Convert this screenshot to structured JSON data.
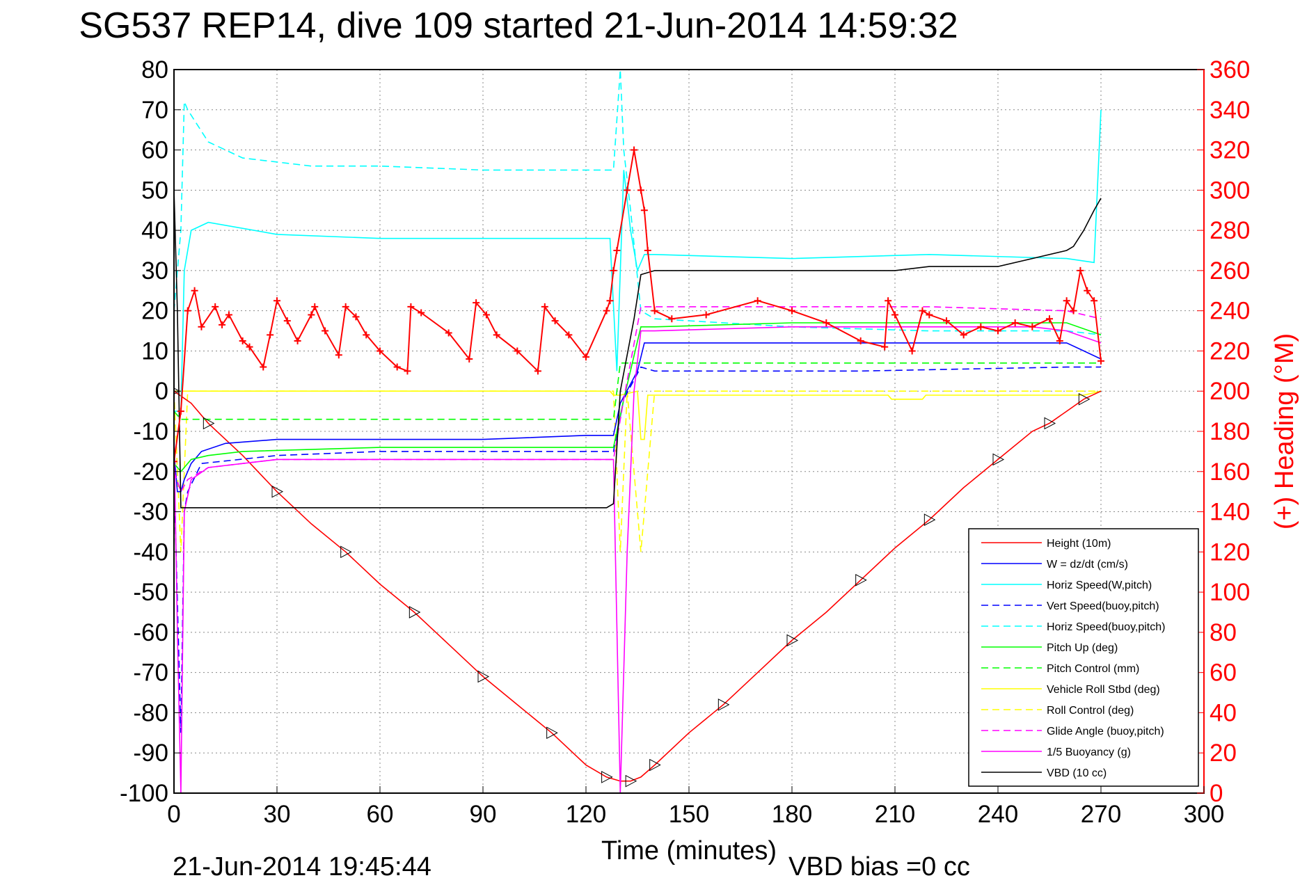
{
  "chart_data": {
    "type": "line",
    "title": "SG537 REP14, dive 109 started 21-Jun-2014 14:59:32",
    "xlabel": "Time (minutes)",
    "ylabel": "",
    "y2label": "(+) Heading (°M)",
    "footer_left": "21-Jun-2014 19:45:44",
    "footer_right": "VBD bias =0 cc",
    "xlim": [
      0,
      300
    ],
    "ylim": [
      -100,
      80
    ],
    "y2lim": [
      0,
      360
    ],
    "grid": true,
    "legend_position": "bottom-right",
    "xticks": [
      "0",
      "30",
      "60",
      "90",
      "120",
      "150",
      "180",
      "210",
      "240",
      "270",
      "300"
    ],
    "yticks": [
      "80",
      "70",
      "60",
      "50",
      "40",
      "30",
      "20",
      "10",
      "0",
      "-10",
      "-20",
      "-30",
      "-40",
      "-50",
      "-60",
      "-70",
      "-80",
      "-90",
      "-100"
    ],
    "y2ticks": [
      "360",
      "340",
      "320",
      "300",
      "280",
      "260",
      "240",
      "220",
      "200",
      "180",
      "160",
      "140",
      "120",
      "100",
      "80",
      "60",
      "40",
      "20",
      "0"
    ],
    "series": [
      {
        "name": "Height (10m)",
        "color": "#ff0000",
        "dash": "solid",
        "axis": "left",
        "x": [
          0,
          5,
          10,
          20,
          30,
          40,
          50,
          60,
          70,
          80,
          90,
          100,
          110,
          120,
          126,
          130,
          133,
          136,
          140,
          150,
          160,
          170,
          180,
          190,
          200,
          210,
          220,
          230,
          240,
          250,
          255,
          260,
          265,
          270
        ],
        "y": [
          0,
          -3,
          -8,
          -16,
          -25,
          -33,
          -40,
          -48,
          -55,
          -63,
          -71,
          -78,
          -85,
          -93,
          -96,
          -97,
          -97,
          -96,
          -93,
          -85,
          -78,
          -70,
          -62,
          -55,
          -47,
          -39,
          -32,
          -24,
          -17,
          -10,
          -8,
          -5,
          -2,
          0
        ]
      },
      {
        "name": "W = dz/dt (cm/s)",
        "color": "#0000ff",
        "dash": "solid",
        "axis": "left",
        "x": [
          0,
          1,
          2,
          3,
          5,
          8,
          15,
          30,
          60,
          90,
          120,
          128,
          130,
          135,
          137,
          140,
          180,
          220,
          260,
          265,
          270
        ],
        "y": [
          -15,
          -25,
          -25,
          -22,
          -18,
          -15,
          -13,
          -12,
          -12,
          -12,
          -11,
          -11,
          -3,
          5,
          12,
          12,
          12,
          12,
          12,
          10,
          8
        ]
      },
      {
        "name": "Horiz Speed(W,pitch)",
        "color": "#00ffff",
        "dash": "solid",
        "axis": "left",
        "x": [
          0,
          2,
          3,
          5,
          10,
          30,
          60,
          90,
          120,
          127,
          129,
          131,
          133,
          135,
          137,
          140,
          180,
          220,
          260,
          268,
          270
        ],
        "y": [
          -5,
          -5,
          30,
          40,
          42,
          39,
          38,
          38,
          38,
          38,
          5,
          55,
          40,
          30,
          34,
          34,
          33,
          34,
          33,
          32,
          70
        ]
      },
      {
        "name": "Vert Speed(buoy,pitch)",
        "color": "#0000ff",
        "dash": "dashed",
        "axis": "left",
        "x": [
          0,
          2,
          3,
          4,
          8,
          30,
          60,
          120,
          128,
          131,
          136,
          140,
          200,
          260,
          270
        ],
        "y": [
          -20,
          -85,
          -30,
          -25,
          -18,
          -16,
          -15,
          -15,
          -15,
          -2,
          6,
          5,
          5,
          6,
          6
        ]
      },
      {
        "name": "Horiz Speed(buoy,pitch)",
        "color": "#00ffff",
        "dash": "dashed",
        "axis": "left",
        "x": [
          0,
          2,
          3,
          4,
          10,
          20,
          40,
          60,
          90,
          120,
          128,
          130,
          131,
          133,
          136,
          140,
          180,
          220,
          260,
          270
        ],
        "y": [
          20,
          40,
          72,
          70,
          62,
          58,
          56,
          56,
          55,
          55,
          55,
          80,
          60,
          45,
          20,
          18,
          16,
          15,
          15,
          14
        ]
      },
      {
        "name": "Pitch Up (deg)",
        "color": "#00ff00",
        "dash": "solid",
        "axis": "left",
        "x": [
          0,
          2,
          5,
          10,
          20,
          60,
          90,
          120,
          128,
          131,
          136,
          140,
          180,
          220,
          260,
          270
        ],
        "y": [
          -18,
          -20,
          -17,
          -16,
          -15,
          -14,
          -14,
          -14,
          -14,
          -2,
          16,
          16,
          17,
          17,
          17,
          14
        ]
      },
      {
        "name": "Pitch Control (mm)",
        "color": "#00ff00",
        "dash": "dashed",
        "axis": "left",
        "x": [
          0,
          2,
          5,
          128,
          130,
          136,
          270
        ],
        "y": [
          -5,
          -7,
          -7,
          -7,
          7,
          7,
          7
        ]
      },
      {
        "name": "Vehicle Roll Stbd (deg)",
        "color": "#ffff00",
        "dash": "solid",
        "axis": "left",
        "x": [
          0,
          5,
          10,
          20,
          30,
          40,
          60,
          90,
          120,
          127,
          128,
          130,
          135,
          136,
          137,
          138,
          140,
          180,
          208,
          209,
          210,
          218,
          219,
          220,
          260,
          265,
          270
        ],
        "y": [
          0,
          0,
          0,
          0,
          0,
          0,
          0,
          0,
          0,
          0,
          -1,
          -1,
          0,
          -12,
          -12,
          -1,
          -1,
          -1,
          -1,
          -2,
          -2,
          -2,
          -1,
          -1,
          -1,
          -1,
          0
        ]
      },
      {
        "name": "Roll Control (deg)",
        "color": "#ffff00",
        "dash": "dashed",
        "axis": "left",
        "x": [
          0,
          2,
          4,
          6,
          128,
          130,
          132,
          136,
          140,
          250,
          255,
          258,
          262,
          270
        ],
        "y": [
          0,
          -40,
          0,
          0,
          0,
          -40,
          0,
          -40,
          0,
          0,
          0,
          0,
          0,
          0
        ]
      },
      {
        "name": "Glide Angle (buoy,pitch)",
        "color": "#ff00ff",
        "dash": "dashed",
        "axis": "left",
        "x": [
          0,
          2,
          4,
          10,
          30,
          60,
          90,
          120,
          128,
          131,
          136,
          140,
          180,
          220,
          260,
          270
        ],
        "y": [
          -20,
          -25,
          -22,
          -19,
          -17,
          -17,
          -17,
          -17,
          -17,
          -2,
          21,
          21,
          21,
          21,
          20,
          18
        ]
      },
      {
        "name": "1/5 Buoyancy (g)",
        "color": "#ff00ff",
        "dash": "solid",
        "axis": "left",
        "x": [
          0,
          1,
          2,
          3,
          5,
          10,
          30,
          60,
          90,
          120,
          128,
          130,
          132,
          134,
          136,
          140,
          180,
          220,
          250,
          260,
          270
        ],
        "y": [
          -10,
          -60,
          -100,
          -30,
          -22,
          -19,
          -17,
          -17,
          -17,
          -17,
          -17,
          -100,
          -40,
          0,
          15,
          15,
          16,
          16,
          16,
          15,
          12
        ]
      },
      {
        "name": "VBD (10 cc)",
        "color": "#000000",
        "dash": "solid",
        "axis": "left",
        "x": [
          0,
          1,
          2,
          3,
          10,
          30,
          60,
          90,
          120,
          126,
          128,
          130,
          134,
          136,
          140,
          180,
          210,
          220,
          240,
          250,
          260,
          262,
          265,
          268,
          270
        ],
        "y": [
          50,
          20,
          -29,
          -29,
          -29,
          -29,
          -29,
          -29,
          -29,
          -29,
          -28,
          0,
          18,
          29,
          30,
          30,
          30,
          31,
          31,
          33,
          35,
          36,
          40,
          45,
          48
        ]
      },
      {
        "name": "",
        "color": "#ff0000",
        "dash": "solid",
        "marker": "+",
        "axis": "right",
        "x": [
          0,
          2,
          4,
          6,
          8,
          12,
          14,
          16,
          20,
          22,
          26,
          28,
          30,
          33,
          36,
          40,
          41,
          44,
          48,
          50,
          53,
          56,
          60,
          65,
          68,
          69,
          72,
          80,
          86,
          88,
          91,
          94,
          100,
          106,
          108,
          111,
          115,
          120,
          126,
          127,
          128,
          129,
          132,
          134,
          136,
          137,
          138,
          140,
          145,
          155,
          170,
          180,
          190,
          200,
          207,
          208,
          210,
          215,
          218,
          220,
          225,
          230,
          235,
          240,
          245,
          250,
          255,
          258,
          260,
          262,
          264,
          266,
          268,
          270
        ],
        "y": [
          165,
          190,
          240,
          250,
          232,
          242,
          233,
          238,
          225,
          222,
          212,
          228,
          245,
          235,
          225,
          238,
          242,
          230,
          218,
          242,
          237,
          228,
          220,
          212,
          210,
          242,
          239,
          229,
          216,
          244,
          238,
          228,
          220,
          210,
          242,
          235,
          228,
          217,
          240,
          245,
          260,
          270,
          300,
          320,
          300,
          290,
          270,
          240,
          236,
          238,
          245,
          240,
          234,
          225,
          222,
          245,
          238,
          220,
          240,
          238,
          235,
          228,
          232,
          230,
          234,
          232,
          236,
          225,
          245,
          240,
          260,
          250,
          245,
          215
        ]
      }
    ]
  }
}
